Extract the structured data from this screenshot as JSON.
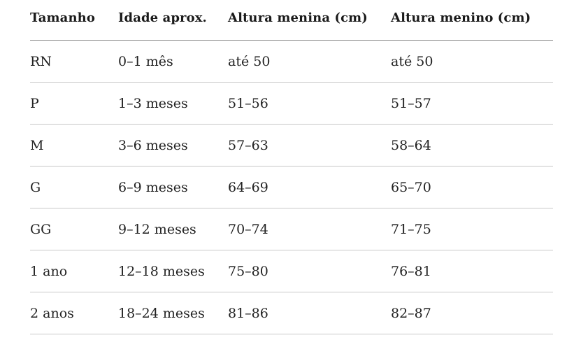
{
  "table": {
    "headers": [
      "Tamanho",
      "Idade aprox.",
      "Altura menina (cm)",
      "Altura menino (cm)"
    ],
    "rows": [
      [
        "RN",
        "0–1 mês",
        "até 50",
        "até 50"
      ],
      [
        "P",
        "1–3 meses",
        "51–56",
        "51–57"
      ],
      [
        "M",
        "3–6 meses",
        "57–63",
        "58–64"
      ],
      [
        "G",
        "6–9 meses",
        "64–69",
        "65–70"
      ],
      [
        "GG",
        "9–12 meses",
        "70–74",
        "71–75"
      ],
      [
        "1 ano",
        "12–18 meses",
        "75–80",
        "76–81"
      ],
      [
        "2 anos",
        "18–24 meses",
        "81–86",
        "82–87"
      ]
    ]
  }
}
